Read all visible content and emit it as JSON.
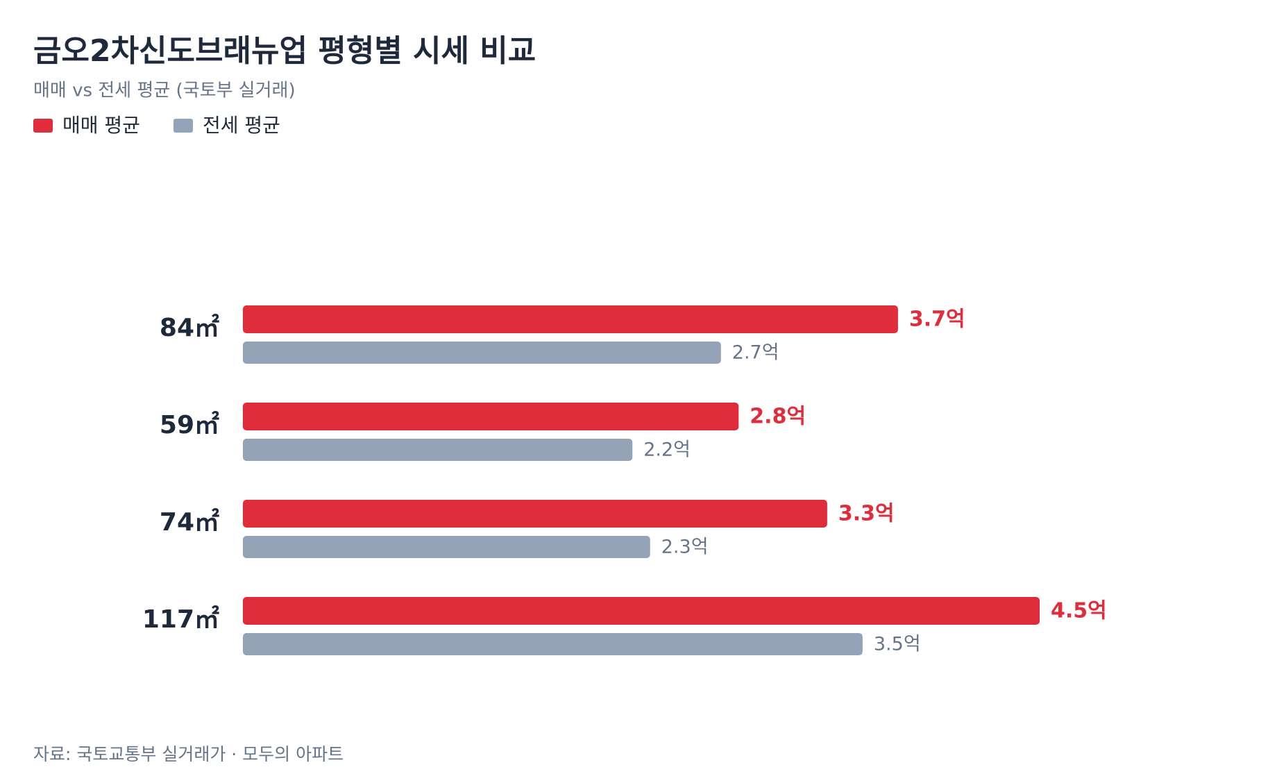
{
  "chart_data": {
    "type": "bar",
    "orientation": "horizontal",
    "title": "금오2차신도브래뉴업 평형별 시세 비교",
    "subtitle": "매매 vs 전세 평균 (국토부 실거래)",
    "source": "자료: 국토교통부 실거래가 · 모두의 아파트",
    "categories": [
      "84㎡",
      "59㎡",
      "74㎡",
      "117㎡"
    ],
    "series": [
      {
        "name": "매매 평균",
        "color": "#e02d3c",
        "values": [
          3.7,
          2.8,
          3.3,
          4.5
        ],
        "value_labels": [
          "3.7억",
          "2.8억",
          "3.3억",
          "4.5억"
        ]
      },
      {
        "name": "전세 평균",
        "color": "#94a3b8",
        "values": [
          2.7,
          2.2,
          2.3,
          3.5
        ],
        "value_labels": [
          "2.7억",
          "2.2억",
          "2.3억",
          "3.5억"
        ]
      }
    ]
  }
}
